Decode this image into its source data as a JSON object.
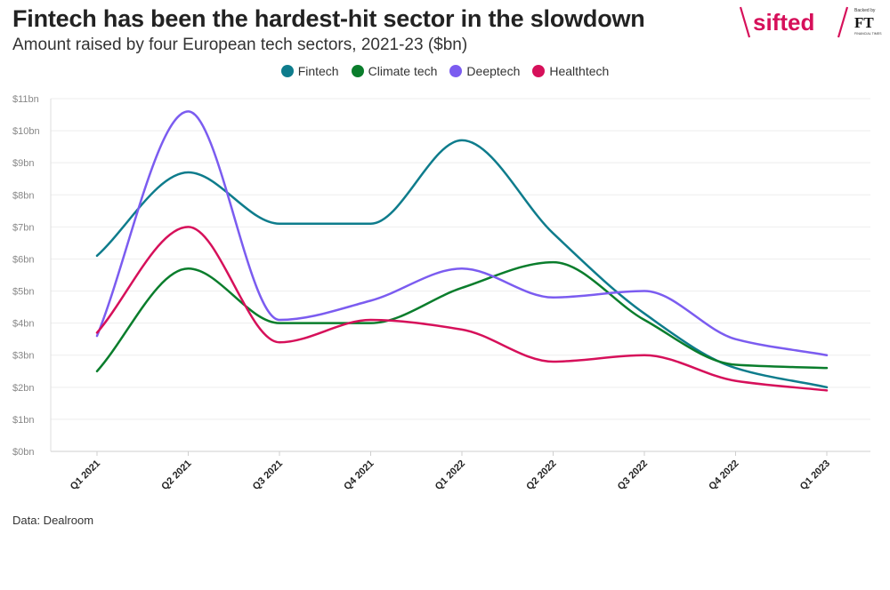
{
  "header": {
    "title": "Fintech has been the hardest-hit sector in the slowdown",
    "subtitle": "Amount raised by four European tech sectors, 2021-23 ($bn)"
  },
  "brand": {
    "logo_text": "sifted",
    "backed_by": "Backed by",
    "ft_mark": "FT",
    "ft_name": "FINANCIAL TIMES"
  },
  "footer": {
    "source": "Data: Dealroom"
  },
  "chart_data": {
    "type": "line",
    "title": "Fintech has been the hardest-hit sector in the slowdown",
    "subtitle": "Amount raised by four European tech sectors, 2021-23 ($bn)",
    "categories": [
      "Q1 2021",
      "Q2 2021",
      "Q3 2021",
      "Q4 2021",
      "Q1 2022",
      "Q2 2022",
      "Q3 2022",
      "Q4 2022",
      "Q1 2023"
    ],
    "y_ticks": [
      "$0bn",
      "$1bn",
      "$2bn",
      "$3bn",
      "$4bn",
      "$5bn",
      "$6bn",
      "$7bn",
      "$8bn",
      "$9bn",
      "$10bn",
      "$11bn"
    ],
    "ylim": [
      0,
      11
    ],
    "grid": true,
    "legend_position": "top-center",
    "series": [
      {
        "name": "Fintech",
        "color": "#0e7c8c",
        "values": [
          6.1,
          8.7,
          7.1,
          7.1,
          9.7,
          6.8,
          4.3,
          2.6,
          2.0
        ]
      },
      {
        "name": "Climate tech",
        "color": "#0a7d2c",
        "values": [
          2.5,
          5.7,
          4.0,
          4.0,
          5.1,
          5.9,
          4.1,
          2.7,
          2.6
        ]
      },
      {
        "name": "Deeptech",
        "color": "#7b5cf0",
        "values": [
          3.6,
          10.6,
          4.1,
          4.7,
          5.7,
          4.8,
          5.0,
          3.5,
          3.0
        ]
      },
      {
        "name": "Healthtech",
        "color": "#d6105a",
        "values": [
          3.7,
          7.0,
          3.4,
          4.1,
          3.8,
          2.8,
          3.0,
          2.2,
          1.9
        ]
      }
    ]
  }
}
